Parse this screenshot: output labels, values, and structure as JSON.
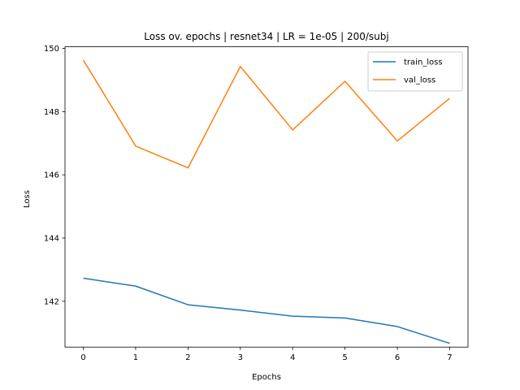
{
  "chart_data": {
    "type": "line",
    "title": "Loss ov. epochs | resnet34 | LR = 1e-05 | 200/subj",
    "xlabel": "Epochs",
    "ylabel": "Loss",
    "x": [
      0,
      1,
      2,
      3,
      4,
      5,
      6,
      7
    ],
    "xlim": [
      -0.35,
      7.35
    ],
    "ylim": [
      140.55,
      150.05
    ],
    "xticks": [
      "0",
      "1",
      "2",
      "3",
      "4",
      "5",
      "6",
      "7"
    ],
    "yticks": [
      "142",
      "144",
      "146",
      "148",
      "150"
    ],
    "legend_position": "top-right",
    "grid": false,
    "series": [
      {
        "name": "train_loss",
        "color": "#1f77b4",
        "values": [
          142.73,
          142.48,
          141.89,
          141.72,
          141.53,
          141.47,
          141.2,
          140.67
        ]
      },
      {
        "name": "val_loss",
        "color": "#ff7f0e",
        "values": [
          149.63,
          146.91,
          146.22,
          149.43,
          147.42,
          148.96,
          147.07,
          148.42
        ]
      }
    ]
  }
}
